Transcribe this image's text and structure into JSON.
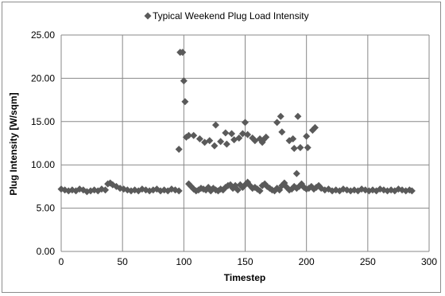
{
  "chart_data": {
    "type": "scatter",
    "xlabel": "Timestep",
    "ylabel": "Plug Intensity [W/sqm]",
    "xlim": [
      0,
      300
    ],
    "ylim": [
      0,
      25
    ],
    "x_ticks": [
      "0",
      "50",
      "100",
      "150",
      "200",
      "250",
      "300"
    ],
    "y_ticks": [
      "0.00",
      "5.00",
      "10.00",
      "15.00",
      "20.00",
      "25.00"
    ],
    "grid": true,
    "legend_position": "top",
    "marker": "diamond",
    "colors": {
      "series": "#5a5a5a",
      "grid": "#888888",
      "axis": "#888888"
    },
    "series": [
      {
        "name": "Typical Weekend Plug Load Intensity",
        "points": [
          [
            0,
            7.2
          ],
          [
            3,
            7.1
          ],
          [
            6,
            7.0
          ],
          [
            9,
            7.1
          ],
          [
            12,
            7.0
          ],
          [
            15,
            7.2
          ],
          [
            18,
            7.1
          ],
          [
            21,
            6.9
          ],
          [
            24,
            7.0
          ],
          [
            27,
            7.1
          ],
          [
            30,
            7.0
          ],
          [
            33,
            7.2
          ],
          [
            36,
            7.1
          ],
          [
            38,
            7.8
          ],
          [
            40,
            7.9
          ],
          [
            42,
            7.7
          ],
          [
            45,
            7.5
          ],
          [
            48,
            7.3
          ],
          [
            51,
            7.2
          ],
          [
            54,
            7.1
          ],
          [
            57,
            7.0
          ],
          [
            60,
            7.1
          ],
          [
            63,
            7.0
          ],
          [
            66,
            7.2
          ],
          [
            69,
            7.1
          ],
          [
            72,
            7.0
          ],
          [
            75,
            7.1
          ],
          [
            78,
            7.2
          ],
          [
            81,
            7.0
          ],
          [
            84,
            7.1
          ],
          [
            87,
            7.0
          ],
          [
            90,
            7.2
          ],
          [
            93,
            7.1
          ],
          [
            96,
            7.0
          ],
          [
            96,
            11.8
          ],
          [
            97,
            23.0
          ],
          [
            99,
            23.0
          ],
          [
            100,
            19.7
          ],
          [
            101,
            17.3
          ],
          [
            102,
            13.2
          ],
          [
            104,
            13.4
          ],
          [
            108,
            13.4
          ],
          [
            113,
            13.0
          ],
          [
            117,
            12.6
          ],
          [
            121,
            12.8
          ],
          [
            125,
            12.2
          ],
          [
            126,
            14.6
          ],
          [
            130,
            12.7
          ],
          [
            134,
            13.7
          ],
          [
            135,
            12.4
          ],
          [
            139,
            13.6
          ],
          [
            141,
            12.9
          ],
          [
            145,
            13.1
          ],
          [
            148,
            13.6
          ],
          [
            150,
            14.9
          ],
          [
            152,
            13.5
          ],
          [
            156,
            13.1
          ],
          [
            158,
            12.8
          ],
          [
            162,
            13.0
          ],
          [
            164,
            12.6
          ],
          [
            165,
            12.9
          ],
          [
            167,
            13.2
          ],
          [
            176,
            14.9
          ],
          [
            179,
            15.6
          ],
          [
            180,
            13.8
          ],
          [
            186,
            12.8
          ],
          [
            189,
            13.0
          ],
          [
            190,
            11.9
          ],
          [
            192,
            9.0
          ],
          [
            193,
            15.6
          ],
          [
            195,
            12.0
          ],
          [
            200,
            13.3
          ],
          [
            201,
            12.0
          ],
          [
            205,
            14.0
          ],
          [
            207,
            14.3
          ],
          [
            104,
            7.8
          ],
          [
            106,
            7.5
          ],
          [
            108,
            7.2
          ],
          [
            110,
            7.0
          ],
          [
            112,
            7.1
          ],
          [
            114,
            7.3
          ],
          [
            116,
            7.2
          ],
          [
            118,
            7.1
          ],
          [
            120,
            7.4
          ],
          [
            122,
            7.0
          ],
          [
            124,
            7.3
          ],
          [
            126,
            7.1
          ],
          [
            128,
            7.0
          ],
          [
            130,
            7.2
          ],
          [
            132,
            7.1
          ],
          [
            134,
            7.4
          ],
          [
            136,
            7.6
          ],
          [
            138,
            7.7
          ],
          [
            140,
            7.3
          ],
          [
            142,
            7.6
          ],
          [
            144,
            7.1
          ],
          [
            146,
            7.7
          ],
          [
            148,
            7.4
          ],
          [
            150,
            7.7
          ],
          [
            152,
            8.0
          ],
          [
            154,
            7.6
          ],
          [
            156,
            7.3
          ],
          [
            158,
            7.4
          ],
          [
            160,
            7.2
          ],
          [
            162,
            7.0
          ],
          [
            164,
            7.6
          ],
          [
            166,
            7.8
          ],
          [
            168,
            7.5
          ],
          [
            170,
            7.3
          ],
          [
            172,
            7.1
          ],
          [
            174,
            7.0
          ],
          [
            176,
            7.3
          ],
          [
            178,
            7.1
          ],
          [
            180,
            7.6
          ],
          [
            182,
            7.9
          ],
          [
            184,
            7.4
          ],
          [
            186,
            7.1
          ],
          [
            188,
            7.2
          ],
          [
            190,
            7.5
          ],
          [
            192,
            7.3
          ],
          [
            194,
            7.5
          ],
          [
            196,
            7.8
          ],
          [
            198,
            7.4
          ],
          [
            200,
            7.2
          ],
          [
            202,
            7.3
          ],
          [
            204,
            7.5
          ],
          [
            206,
            7.2
          ],
          [
            208,
            7.4
          ],
          [
            210,
            7.6
          ],
          [
            212,
            7.3
          ],
          [
            215,
            7.1
          ],
          [
            218,
            7.2
          ],
          [
            221,
            7.0
          ],
          [
            224,
            7.1
          ],
          [
            227,
            7.0
          ],
          [
            230,
            7.2
          ],
          [
            233,
            7.1
          ],
          [
            236,
            7.0
          ],
          [
            239,
            7.1
          ],
          [
            242,
            7.0
          ],
          [
            245,
            7.2
          ],
          [
            248,
            7.1
          ],
          [
            251,
            7.0
          ],
          [
            254,
            7.1
          ],
          [
            257,
            7.0
          ],
          [
            260,
            7.2
          ],
          [
            263,
            7.1
          ],
          [
            266,
            7.0
          ],
          [
            269,
            7.1
          ],
          [
            272,
            7.0
          ],
          [
            275,
            7.2
          ],
          [
            278,
            7.1
          ],
          [
            281,
            7.0
          ],
          [
            284,
            7.1
          ],
          [
            286,
            7.0
          ]
        ]
      }
    ]
  }
}
